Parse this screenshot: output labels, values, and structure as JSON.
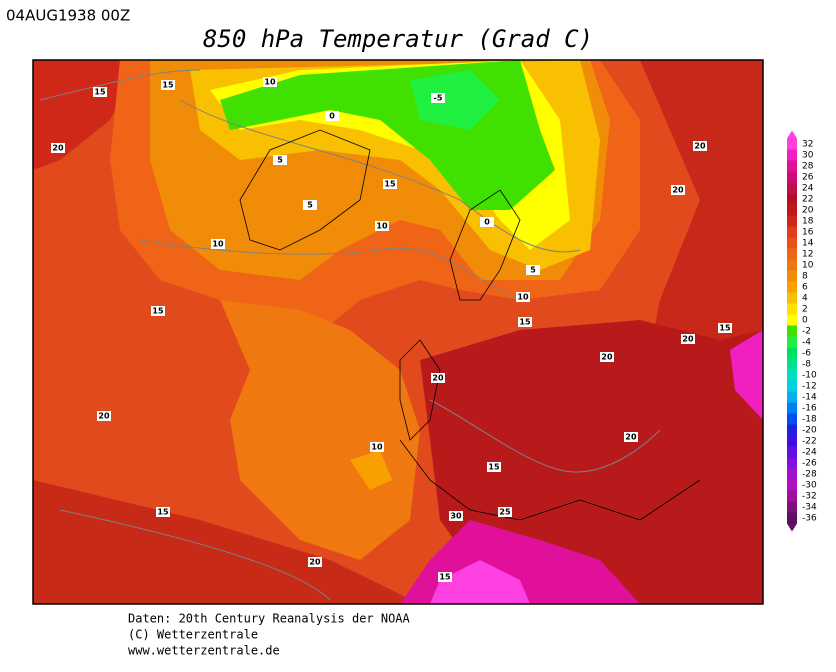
{
  "header": {
    "date": "04AUG1938 00Z",
    "title": "850 hPa Temperatur (Grad C)"
  },
  "colorbar": {
    "ticks": [
      32,
      30,
      28,
      26,
      24,
      22,
      20,
      18,
      16,
      14,
      12,
      10,
      8,
      6,
      4,
      2,
      0,
      -2,
      -4,
      -6,
      -8,
      -10,
      -12,
      -14,
      -16,
      -18,
      -20,
      -22,
      -24,
      -26,
      -28,
      -30,
      -32,
      -34,
      -36
    ],
    "colors": [
      "#ff40e0",
      "#f020c0",
      "#e0109a",
      "#d0087a",
      "#c0104a",
      "#b01020",
      "#c01818",
      "#d02818",
      "#e03c18",
      "#e85018",
      "#f06418",
      "#f07810",
      "#f08c08",
      "#f8a000",
      "#f8c000",
      "#ffe000",
      "#ffff00",
      "#40e000",
      "#20f040",
      "#00e060",
      "#00e090",
      "#00e0c0",
      "#00d0e0",
      "#00b0f0",
      "#0080f0",
      "#0050f0",
      "#2020e0",
      "#4010e0",
      "#6010e0",
      "#8010e0",
      "#a010d0",
      "#b010c0",
      "#a010a0",
      "#801080",
      "#601060"
    ]
  },
  "contour_labels": [
    "15",
    "15",
    "20",
    "10",
    "0",
    "-5",
    "5",
    "5",
    "10",
    "10",
    "15",
    "15",
    "0",
    "5",
    "10",
    "15",
    "20",
    "20",
    "20",
    "20",
    "20",
    "15",
    "10",
    "15",
    "20",
    "25",
    "30",
    "15",
    "20",
    "15",
    "20"
  ],
  "footer": [
    "Daten: 20th Century Reanalysis der NOAA",
    "(C) Wetterzentrale",
    "www.wetterzentrale.de"
  ]
}
